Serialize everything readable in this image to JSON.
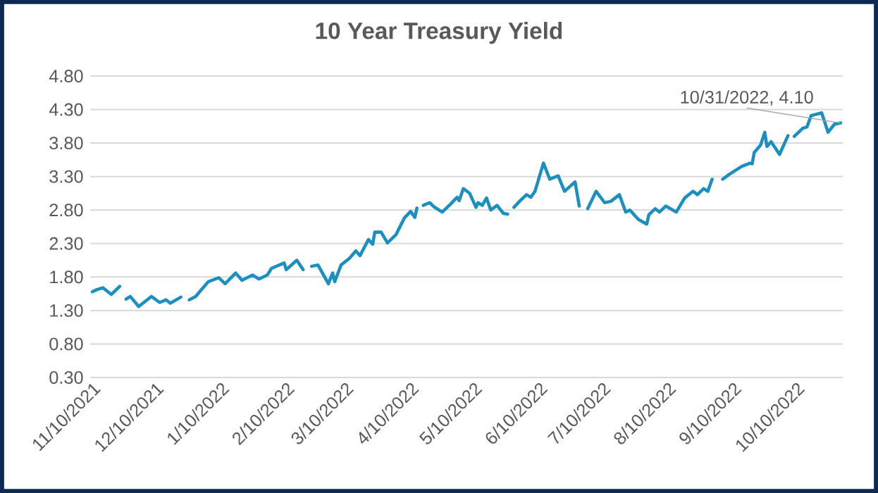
{
  "chart_data": {
    "type": "line",
    "title": "10 Year Treasury Yield",
    "x": [
      "2021-11-10",
      "2021-11-12",
      "2021-11-15",
      "2021-11-17",
      "2021-11-19",
      "2021-11-21",
      "2021-11-23",
      "2021-11-25",
      "2021-11-26",
      "2021-11-28",
      "2021-12-02",
      "2021-12-08",
      "2021-12-12",
      "2021-12-15",
      "2021-12-17",
      "2021-12-22",
      "2021-12-24",
      "2021-12-26",
      "2021-12-29",
      "2022-01-04",
      "2022-01-09",
      "2022-01-12",
      "2022-01-17",
      "2022-01-20",
      "2022-01-25",
      "2022-01-28",
      "2022-02-01",
      "2022-02-03",
      "2022-02-09",
      "2022-02-10",
      "2022-02-15",
      "2022-02-18",
      "2022-02-21",
      "2022-02-22",
      "2022-02-25",
      "2022-03-02",
      "2022-03-04",
      "2022-03-05",
      "2022-03-08",
      "2022-03-12",
      "2022-03-15",
      "2022-03-17",
      "2022-03-21",
      "2022-03-23",
      "2022-03-24",
      "2022-03-27",
      "2022-03-30",
      "2022-04-03",
      "2022-04-07",
      "2022-04-10",
      "2022-04-12",
      "2022-04-13",
      "2022-04-15",
      "2022-04-16",
      "2022-04-19",
      "2022-04-21",
      "2022-04-25",
      "2022-04-29",
      "2022-05-02",
      "2022-05-03",
      "2022-05-05",
      "2022-05-08",
      "2022-05-11",
      "2022-05-12",
      "2022-05-14",
      "2022-05-16",
      "2022-05-18",
      "2022-05-21",
      "2022-05-24",
      "2022-05-26",
      "2022-05-27",
      "2022-05-29",
      "2022-06-01",
      "2022-06-04",
      "2022-06-06",
      "2022-06-08",
      "2022-06-12",
      "2022-06-15",
      "2022-06-19",
      "2022-06-22",
      "2022-06-27",
      "2022-06-29",
      "2022-07-01",
      "2022-07-03",
      "2022-07-07",
      "2022-07-11",
      "2022-07-14",
      "2022-07-18",
      "2022-07-21",
      "2022-07-23",
      "2022-07-27",
      "2022-07-31",
      "2022-08-01",
      "2022-08-04",
      "2022-08-06",
      "2022-08-09",
      "2022-08-14",
      "2022-08-18",
      "2022-08-22",
      "2022-08-24",
      "2022-08-27",
      "2022-08-29",
      "2022-08-31",
      "2022-09-04",
      "2022-09-05",
      "2022-09-08",
      "2022-09-14",
      "2022-09-18",
      "2022-09-19",
      "2022-09-20",
      "2022-09-23",
      "2022-09-25",
      "2022-09-26",
      "2022-09-28",
      "2022-10-02",
      "2022-10-06",
      "2022-10-08",
      "2022-10-09",
      "2022-10-13",
      "2022-10-15",
      "2022-10-17",
      "2022-10-22",
      "2022-10-25",
      "2022-10-28",
      "2022-10-31"
    ],
    "values": [
      1.58,
      1.61,
      1.64,
      1.59,
      1.54,
      1.6,
      1.66,
      null,
      1.47,
      1.51,
      1.36,
      1.51,
      1.42,
      1.46,
      1.41,
      1.5,
      null,
      1.46,
      1.51,
      1.73,
      1.79,
      1.7,
      1.86,
      1.75,
      1.83,
      1.77,
      1.83,
      1.93,
      2.01,
      1.91,
      2.05,
      1.91,
      null,
      1.96,
      1.98,
      1.7,
      1.86,
      1.73,
      1.98,
      2.08,
      2.19,
      2.12,
      2.36,
      2.29,
      2.47,
      2.47,
      2.31,
      2.43,
      2.68,
      2.78,
      2.69,
      2.83,
      null,
      2.87,
      2.91,
      2.85,
      2.77,
      2.89,
      2.99,
      2.94,
      3.12,
      3.05,
      2.84,
      2.91,
      2.87,
      2.98,
      2.8,
      2.87,
      2.75,
      2.74,
      null,
      2.84,
      2.94,
      3.03,
      2.99,
      3.08,
      3.5,
      3.26,
      3.31,
      3.08,
      3.22,
      2.86,
      null,
      2.82,
      3.08,
      2.91,
      2.93,
      3.03,
      2.77,
      2.8,
      2.66,
      2.59,
      2.73,
      2.82,
      2.77,
      2.86,
      2.77,
      2.98,
      3.08,
      3.03,
      3.12,
      3.08,
      3.26,
      null,
      3.26,
      3.33,
      3.45,
      3.5,
      3.49,
      3.66,
      3.77,
      3.96,
      3.75,
      3.82,
      3.63,
      3.91,
      null,
      3.9,
      4.02,
      4.04,
      4.21,
      4.25,
      3.96,
      4.08,
      4.1
    ],
    "color": "#1b8fc0",
    "xlim": [
      "2021-11-09",
      "2022-11-01"
    ],
    "xticks": [
      {
        "value": "2021-11-10",
        "label": "11/10/2021"
      },
      {
        "value": "2021-12-10",
        "label": "12/10/2021"
      },
      {
        "value": "2022-01-10",
        "label": "1/10/2022"
      },
      {
        "value": "2022-02-10",
        "label": "2/10/2022"
      },
      {
        "value": "2022-03-10",
        "label": "3/10/2022"
      },
      {
        "value": "2022-04-10",
        "label": "4/10/2022"
      },
      {
        "value": "2022-05-10",
        "label": "5/10/2022"
      },
      {
        "value": "2022-06-10",
        "label": "6/10/2022"
      },
      {
        "value": "2022-07-10",
        "label": "7/10/2022"
      },
      {
        "value": "2022-08-10",
        "label": "8/10/2022"
      },
      {
        "value": "2022-09-10",
        "label": "9/10/2022"
      },
      {
        "value": "2022-10-10",
        "label": "10/10/2022"
      }
    ],
    "ylim": [
      0.3,
      4.8
    ],
    "yticks": [
      {
        "value": 0.3,
        "label": "0.30"
      },
      {
        "value": 0.8,
        "label": "0.80"
      },
      {
        "value": 1.3,
        "label": "1.30"
      },
      {
        "value": 1.8,
        "label": "1.80"
      },
      {
        "value": 2.3,
        "label": "2.30"
      },
      {
        "value": 2.8,
        "label": "2.80"
      },
      {
        "value": 3.3,
        "label": "3.30"
      },
      {
        "value": 3.8,
        "label": "3.80"
      },
      {
        "value": 4.3,
        "label": "4.30"
      },
      {
        "value": 4.8,
        "label": "4.80"
      }
    ],
    "grid": "y",
    "legend": false,
    "line_style": "solid",
    "marker": "none",
    "annotations": [
      {
        "text": "10/31/2022,  4.10",
        "x": "2022-10-31",
        "y": 4.1
      }
    ]
  }
}
